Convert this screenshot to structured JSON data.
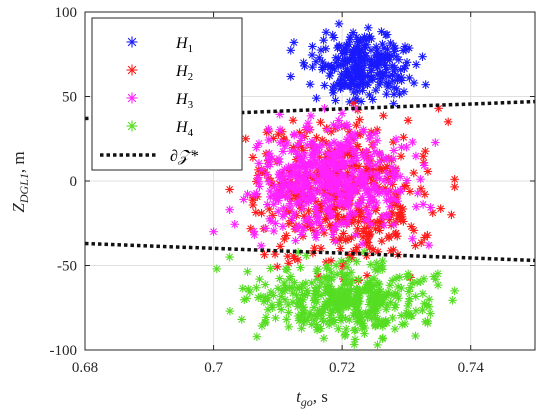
{
  "chart_data": {
    "type": "scatter",
    "title": "",
    "xlabel": {
      "main": "t",
      "sub": "go",
      "suffix": ", s"
    },
    "ylabel": {
      "main": "Z",
      "sub": "DGL1",
      "suffix": ", m"
    },
    "xlim": [
      0.68,
      0.75
    ],
    "ylim": [
      -100,
      100
    ],
    "xticks": [
      0.68,
      0.7,
      0.72,
      0.74
    ],
    "xtick_labels": [
      "0.68",
      "0.7",
      "0.72",
      "0.74"
    ],
    "yticks": [
      -100,
      -50,
      0,
      50,
      100
    ],
    "ytick_labels": [
      "-100",
      "-50",
      "0",
      "50",
      "100"
    ],
    "grid": true,
    "legend_position": "top-left",
    "marker": "asterisk",
    "series": [
      {
        "name": "H",
        "sub": "1",
        "color": "#1a1aff",
        "x_range": [
          0.712,
          0.733
        ],
        "y_range": [
          42,
          93
        ],
        "count": 260,
        "points": [
          [
            0.7195,
            93
          ],
          [
            0.7175,
            88
          ],
          [
            0.7125,
            82
          ],
          [
            0.733,
            57
          ],
          [
            0.714,
            70
          ],
          [
            0.728,
            80
          ],
          [
            0.723,
            62
          ],
          [
            0.716,
            49
          ]
        ]
      },
      {
        "name": "H",
        "sub": "2",
        "color": "#ff1a1a",
        "x_range": [
          0.7005,
          0.7375
        ],
        "y_range": [
          -62,
          46
        ],
        "count": 420,
        "points": [
          [
            0.703,
            24
          ],
          [
            0.705,
            25
          ],
          [
            0.735,
            43
          ],
          [
            0.7365,
            35
          ],
          [
            0.7375,
            1
          ],
          [
            0.737,
            -20
          ],
          [
            0.7085,
            12
          ],
          [
            0.7025,
            -5
          ]
        ]
      },
      {
        "name": "H",
        "sub": "3",
        "color": "#ff22ff",
        "x_range": [
          0.7,
          0.7345
        ],
        "y_range": [
          -42,
          43
        ],
        "count": 480,
        "points": [
          [
            0.7,
            -30
          ],
          [
            0.7025,
            -17
          ],
          [
            0.7335,
            -38
          ],
          [
            0.72,
            40
          ],
          [
            0.73,
            20
          ],
          [
            0.71,
            -10
          ]
        ]
      },
      {
        "name": "H",
        "sub": "4",
        "color": "#55dd22",
        "x_range": [
          0.7005,
          0.7375
        ],
        "y_range": [
          -97,
          -42
        ],
        "count": 420,
        "points": [
          [
            0.7005,
            -52
          ],
          [
            0.7025,
            -45
          ],
          [
            0.708,
            -84
          ],
          [
            0.7255,
            -97
          ],
          [
            0.7375,
            -65
          ],
          [
            0.716,
            -85
          ],
          [
            0.73,
            -80
          ]
        ]
      }
    ],
    "boundary": {
      "name": "∂𝒵*",
      "color": "#111111",
      "style": "dotted",
      "upper": [
        [
          0.68,
          37
        ],
        [
          0.75,
          47
        ]
      ],
      "lower": [
        [
          0.68,
          -37
        ],
        [
          0.75,
          -47
        ]
      ]
    }
  }
}
